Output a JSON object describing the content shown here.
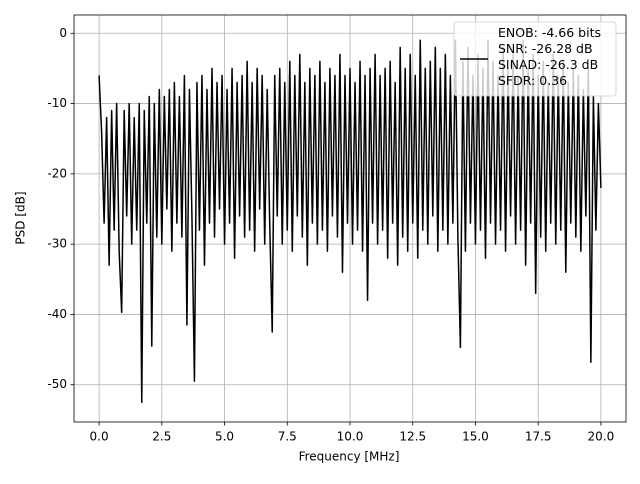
{
  "chart_data": {
    "type": "line",
    "xlabel": "Frequency [MHz]",
    "ylabel": "PSD [dB]",
    "xlim": [
      -1.0,
      21.0
    ],
    "ylim": [
      -55.3,
      2.6
    ],
    "xticks": [
      {
        "value": 0,
        "label": "0.0"
      },
      2.5,
      {
        "value": 5,
        "label": "5.0"
      },
      7.5,
      {
        "value": 10,
        "label": "10.0"
      },
      12.5,
      {
        "value": 15,
        "label": "15.0"
      },
      17.5,
      {
        "value": 20,
        "label": "20.0"
      }
    ],
    "yticks": [
      0,
      -10,
      -20,
      -30,
      -40,
      -50
    ],
    "grid": true,
    "legend": "upper right",
    "x": [
      0,
      0.1,
      0.2,
      0.3,
      0.4,
      0.5,
      0.6,
      0.7,
      0.8,
      0.9,
      1,
      1.1,
      1.2,
      1.3,
      1.4,
      1.5,
      1.6,
      1.7,
      1.8,
      1.9,
      2,
      2.1,
      2.2,
      2.3,
      2.4,
      2.5,
      2.6,
      2.7,
      2.8,
      2.9,
      3,
      3.1,
      3.2,
      3.3,
      3.4,
      3.5,
      3.6,
      3.7,
      3.8,
      3.9,
      4,
      4.1,
      4.2,
      4.3,
      4.4,
      4.5,
      4.6,
      4.7,
      4.8,
      4.9,
      5,
      5.1,
      5.2,
      5.3,
      5.4,
      5.5,
      5.6,
      5.7,
      5.8,
      5.9,
      6,
      6.1,
      6.2,
      6.3,
      6.4,
      6.5,
      6.6,
      6.7,
      6.8,
      6.9,
      7,
      7.1,
      7.2,
      7.3,
      7.4,
      7.5,
      7.6,
      7.7,
      7.8,
      7.9,
      8,
      8.1,
      8.2,
      8.3,
      8.4,
      8.5,
      8.6,
      8.7,
      8.8,
      8.9,
      9,
      9.1,
      9.2,
      9.3,
      9.4,
      9.5,
      9.6,
      9.7,
      9.8,
      9.9,
      10,
      10.1,
      10.2,
      10.3,
      10.4,
      10.5,
      10.6,
      10.7,
      10.8,
      10.9,
      11,
      11.1,
      11.2,
      11.3,
      11.4,
      11.5,
      11.6,
      11.7,
      11.8,
      11.9,
      12,
      12.1,
      12.2,
      12.3,
      12.4,
      12.5,
      12.6,
      12.7,
      12.8,
      12.9,
      13,
      13.1,
      13.2,
      13.3,
      13.4,
      13.5,
      13.6,
      13.7,
      13.8,
      13.9,
      14,
      14.1,
      14.2,
      14.3,
      14.4,
      14.5,
      14.6,
      14.7,
      14.8,
      14.9,
      15,
      15.1,
      15.2,
      15.3,
      15.4,
      15.5,
      15.6,
      15.7,
      15.8,
      15.9,
      16,
      16.1,
      16.2,
      16.3,
      16.4,
      16.5,
      16.6,
      16.7,
      16.8,
      16.9,
      17,
      17.1,
      17.2,
      17.3,
      17.4,
      17.5,
      17.6,
      17.7,
      17.8,
      17.9,
      18,
      18.1,
      18.2,
      18.3,
      18.4,
      18.5,
      18.6,
      18.7,
      18.8,
      18.9,
      19,
      19.1,
      19.2,
      19.3,
      19.4,
      19.5,
      19.6,
      19.7,
      19.8,
      19.9,
      20
    ],
    "series": [
      {
        "name": "ENOB: -4.66 bits\nSNR: -26.28 dB\nSINAD: -26.3 dB\nSFDR: 0.36",
        "color": "#000000",
        "values": [
          -6,
          -14,
          -27,
          -12,
          -33,
          -11,
          -28,
          -10,
          -31,
          -39.7,
          -11,
          -26,
          -10,
          -30,
          -12,
          -28,
          -10,
          -52.5,
          -11,
          -27,
          -9,
          -44.5,
          -10,
          -29,
          -8,
          -30,
          -9,
          -25,
          -8,
          -31,
          -7,
          -27,
          -9,
          -29,
          -6,
          -41.5,
          -8,
          -26,
          -49.5,
          -7,
          -28,
          -6,
          -33,
          -8,
          -27,
          -5,
          -29,
          -7,
          -25,
          -6,
          -30,
          -8,
          -27,
          -5,
          -32,
          -7,
          -26,
          -6,
          -29,
          -4,
          -28,
          -7,
          -31,
          -5,
          -25,
          -6,
          -30,
          -8,
          -27,
          -42.5,
          -6,
          -26,
          -5,
          -30,
          -7,
          -28,
          -4,
          -31,
          -6,
          -26,
          -3,
          -29,
          -7,
          -33,
          -5,
          -27,
          -6,
          -30,
          -4,
          -28,
          -7,
          -31,
          -5,
          -26,
          -6,
          -29,
          -3,
          -34,
          -6,
          -27,
          -5,
          -30,
          -7,
          -28,
          -4,
          -31,
          -6,
          -38,
          -5,
          -27,
          -3,
          -30,
          -6,
          -28,
          -5,
          -32,
          -4,
          -27,
          -7,
          -33,
          -2,
          -29,
          -5,
          -31,
          -3,
          -27,
          -6,
          -32,
          -1,
          -28,
          -5,
          -30,
          -4,
          -26,
          -2,
          -31,
          -5,
          -28,
          -3,
          -30,
          -6,
          -27,
          -1,
          -29,
          -44.7,
          -4,
          -31,
          -2,
          -27,
          -6,
          -30,
          -3,
          -28,
          -5,
          -32,
          -1,
          -27,
          -4,
          -30,
          -6,
          -28,
          -2,
          -31,
          -5,
          -26,
          -3,
          -30,
          -6,
          -28,
          -1,
          -33,
          -5,
          -27,
          -3,
          -37,
          -6,
          -29,
          -4,
          -31,
          -7,
          -27,
          -3,
          -30,
          -6,
          -28,
          -4,
          -34,
          -7,
          -27,
          -5,
          -29,
          -6,
          -31,
          -8,
          -26,
          -5,
          -46.8,
          -9,
          -28,
          -10,
          -22
        ]
      }
    ]
  }
}
